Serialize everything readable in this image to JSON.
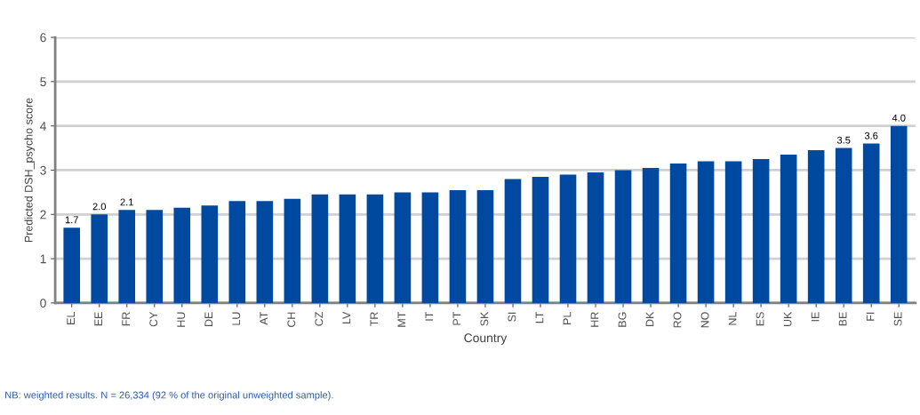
{
  "chart_data": {
    "type": "bar",
    "xlabel": "Country",
    "ylabel": "Predicted DSH_psycho score",
    "categories": [
      "EL",
      "EE",
      "FR",
      "CY",
      "HU",
      "DE",
      "LU",
      "AT",
      "CH",
      "CZ",
      "LV",
      "TR",
      "MT",
      "IT",
      "PT",
      "SK",
      "SI",
      "LT",
      "PL",
      "HR",
      "BG",
      "DK",
      "RO",
      "NO",
      "NL",
      "ES",
      "UK",
      "IE",
      "BE",
      "FI",
      "SE"
    ],
    "values": [
      1.7,
      2.0,
      2.1,
      2.1,
      2.15,
      2.2,
      2.3,
      2.3,
      2.35,
      2.45,
      2.45,
      2.45,
      2.5,
      2.5,
      2.55,
      2.55,
      2.8,
      2.85,
      2.9,
      2.95,
      3.0,
      3.05,
      3.15,
      3.2,
      3.2,
      3.25,
      3.35,
      3.45,
      3.5,
      3.6,
      4.0
    ],
    "value_labels": [
      "1.7",
      "2.0",
      "2.1",
      null,
      null,
      null,
      null,
      null,
      null,
      null,
      null,
      null,
      null,
      null,
      null,
      null,
      null,
      null,
      null,
      null,
      null,
      null,
      null,
      null,
      null,
      null,
      null,
      null,
      "3.5",
      "3.6",
      "4.0"
    ],
    "color": "#0049a0",
    "ylim": [
      0,
      6
    ],
    "yticks": [
      0,
      1,
      2,
      3,
      4,
      5,
      6
    ],
    "grid": "y",
    "annotations": [
      "NB: weighted results. N = 26,334 (92 % of the original unweighted sample)."
    ]
  }
}
